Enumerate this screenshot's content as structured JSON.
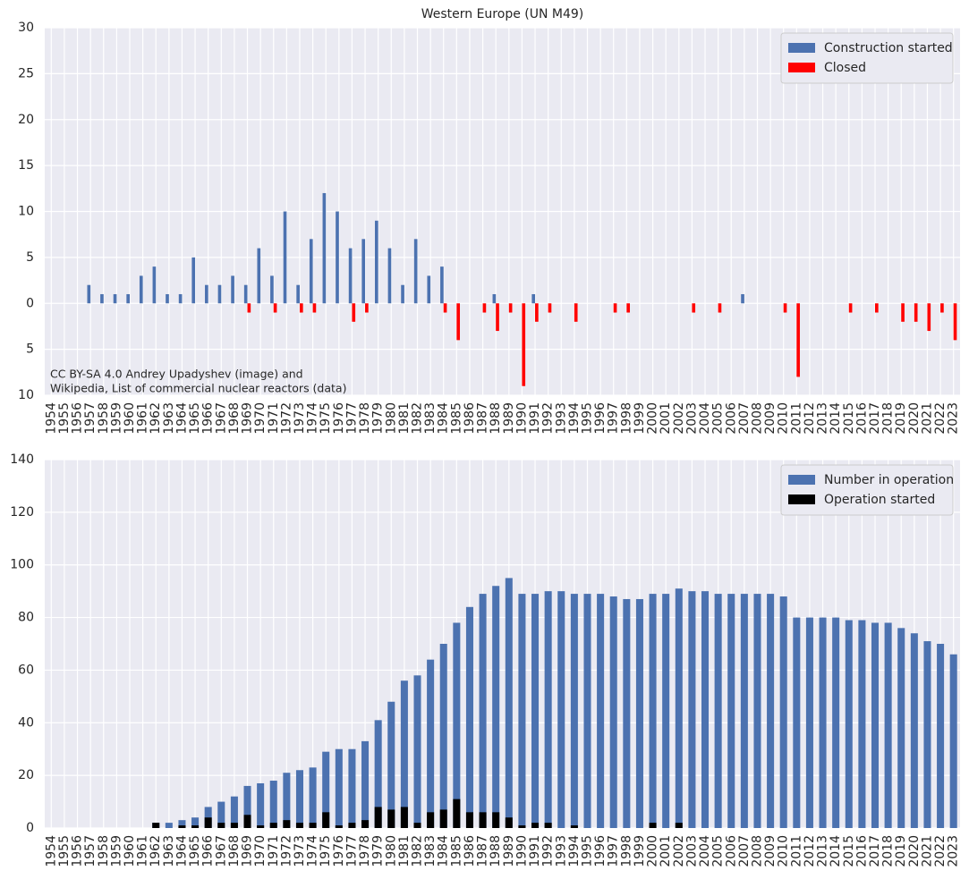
{
  "chart_data": [
    {
      "type": "bar",
      "title": "Western Europe (UN M49)",
      "bar_layout": "grouped",
      "categories": [
        "1954",
        "1955",
        "1956",
        "1957",
        "1958",
        "1959",
        "1960",
        "1961",
        "1962",
        "1963",
        "1964",
        "1965",
        "1966",
        "1967",
        "1968",
        "1969",
        "1970",
        "1971",
        "1972",
        "1973",
        "1974",
        "1975",
        "1976",
        "1977",
        "1978",
        "1979",
        "1980",
        "1981",
        "1982",
        "1983",
        "1984",
        "1985",
        "1986",
        "1987",
        "1988",
        "1989",
        "1990",
        "1991",
        "1992",
        "1993",
        "1994",
        "1995",
        "1996",
        "1997",
        "1998",
        "1999",
        "2000",
        "2001",
        "2002",
        "2003",
        "2004",
        "2005",
        "2006",
        "2007",
        "2008",
        "2009",
        "2010",
        "2011",
        "2012",
        "2013",
        "2014",
        "2015",
        "2016",
        "2017",
        "2018",
        "2019",
        "2020",
        "2021",
        "2022",
        "2023"
      ],
      "highlighted_category_indices": [
        3,
        25,
        32,
        57
      ],
      "highlight_color": "#ff0000",
      "series": [
        {
          "name": "Construction started",
          "color": "#4c72b0",
          "values": [
            0,
            0,
            0,
            2,
            1,
            1,
            1,
            3,
            4,
            1,
            1,
            5,
            2,
            2,
            3,
            2,
            6,
            3,
            10,
            2,
            7,
            12,
            10,
            6,
            7,
            9,
            6,
            2,
            7,
            3,
            4,
            0,
            0,
            0,
            1,
            0,
            0,
            1,
            0,
            0,
            0,
            0,
            0,
            0,
            0,
            0,
            0,
            0,
            0,
            0,
            0,
            0,
            0,
            1,
            0,
            0,
            0,
            0,
            0,
            0,
            0,
            0,
            0,
            0,
            0,
            0,
            0,
            0,
            0,
            0
          ]
        },
        {
          "name": "Closed",
          "color": "#ff0000",
          "values": [
            0,
            0,
            0,
            0,
            0,
            0,
            0,
            0,
            0,
            0,
            0,
            0,
            0,
            0,
            0,
            -1,
            0,
            -1,
            0,
            -1,
            -1,
            0,
            0,
            -2,
            -1,
            0,
            0,
            0,
            0,
            0,
            -1,
            -4,
            0,
            -1,
            -3,
            -1,
            -9,
            -2,
            -1,
            0,
            -2,
            0,
            0,
            -1,
            -1,
            0,
            0,
            0,
            0,
            -1,
            0,
            -1,
            0,
            0,
            0,
            0,
            -1,
            -8,
            0,
            0,
            0,
            -1,
            0,
            -1,
            0,
            -2,
            -2,
            -3,
            -1,
            -4
          ]
        }
      ],
      "ylim": [
        -10,
        30
      ],
      "yticks": [
        {
          "value": -10,
          "label": "10"
        },
        {
          "value": -5,
          "label": "5"
        },
        0,
        5,
        10,
        15,
        20,
        25,
        30
      ],
      "grid": true,
      "legend": "upper right",
      "annotation": [
        "CC BY-SA 4.0 Andrey Upadyshev (image) and",
        "Wikipedia, List of commercial nuclear reactors (data)"
      ]
    },
    {
      "type": "bar",
      "bar_layout": "overlay",
      "categories": [
        "1954",
        "1955",
        "1956",
        "1957",
        "1958",
        "1959",
        "1960",
        "1961",
        "1962",
        "1963",
        "1964",
        "1965",
        "1966",
        "1967",
        "1968",
        "1969",
        "1970",
        "1971",
        "1972",
        "1973",
        "1974",
        "1975",
        "1976",
        "1977",
        "1978",
        "1979",
        "1980",
        "1981",
        "1982",
        "1983",
        "1984",
        "1985",
        "1986",
        "1987",
        "1988",
        "1989",
        "1990",
        "1991",
        "1992",
        "1993",
        "1994",
        "1995",
        "1996",
        "1997",
        "1998",
        "1999",
        "2000",
        "2001",
        "2002",
        "2003",
        "2004",
        "2005",
        "2006",
        "2007",
        "2008",
        "2009",
        "2010",
        "2011",
        "2012",
        "2013",
        "2014",
        "2015",
        "2016",
        "2017",
        "2018",
        "2019",
        "2020",
        "2021",
        "2022",
        "2023"
      ],
      "highlighted_category_indices": [
        3,
        25,
        32,
        57
      ],
      "highlight_color": "#ff0000",
      "series": [
        {
          "name": "Number in operation",
          "color": "#4c72b0",
          "values": [
            0,
            0,
            0,
            0,
            0,
            0,
            0,
            0,
            2,
            2,
            3,
            4,
            8,
            10,
            12,
            16,
            17,
            18,
            21,
            22,
            23,
            29,
            30,
            30,
            33,
            41,
            48,
            56,
            58,
            64,
            70,
            78,
            84,
            89,
            92,
            95,
            89,
            89,
            90,
            90,
            89,
            89,
            89,
            88,
            87,
            87,
            89,
            89,
            91,
            90,
            90,
            89,
            89,
            89,
            89,
            89,
            88,
            80,
            80,
            80,
            80,
            79,
            79,
            78,
            78,
            76,
            74,
            71,
            70,
            66
          ]
        },
        {
          "name": "Operation started",
          "color": "#000000",
          "values": [
            0,
            0,
            0,
            0,
            0,
            0,
            0,
            0,
            2,
            0,
            1,
            1,
            4,
            2,
            2,
            5,
            1,
            2,
            3,
            2,
            2,
            6,
            1,
            2,
            3,
            8,
            7,
            8,
            2,
            6,
            7,
            11,
            6,
            6,
            6,
            4,
            1,
            2,
            2,
            0,
            1,
            0,
            0,
            0,
            0,
            0,
            2,
            0,
            2,
            0,
            0,
            0,
            0,
            0,
            0,
            0,
            0,
            0,
            0,
            0,
            0,
            0,
            0,
            0,
            0,
            0,
            0,
            0,
            0,
            0
          ]
        }
      ],
      "ylim": [
        0,
        140
      ],
      "yticks": [
        0,
        20,
        40,
        60,
        80,
        100,
        120,
        140
      ],
      "grid": true,
      "legend": "upper right"
    }
  ]
}
